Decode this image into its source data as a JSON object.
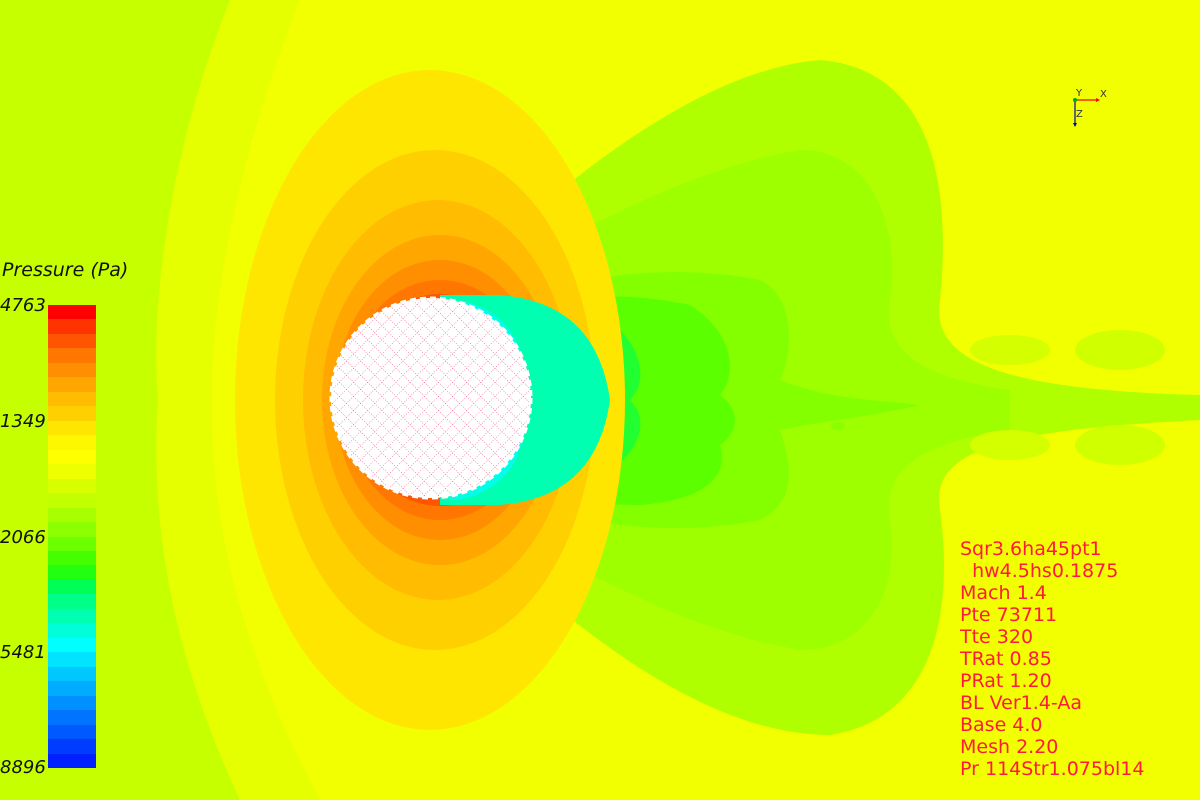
{
  "legend": {
    "title": "Pressure (Pa)",
    "ticks": [
      "4763",
      "1349",
      "2066",
      "5481",
      "8896"
    ],
    "colors": [
      "#ff0000",
      "#ff3300",
      "#ff5500",
      "#ff7700",
      "#ff8f00",
      "#ffa600",
      "#ffbc00",
      "#ffd000",
      "#ffe600",
      "#fff700",
      "#ffff00",
      "#eeff00",
      "#d8ff00",
      "#c2ff00",
      "#a8ff00",
      "#8cff00",
      "#6cff00",
      "#44ff00",
      "#22ff10",
      "#00ff55",
      "#00ff88",
      "#00ffb0",
      "#00ffd8",
      "#00ffff",
      "#00e4ff",
      "#00c8ff",
      "#00acff",
      "#0090ff",
      "#0074ff",
      "#0058ff",
      "#003cff",
      "#0020ff"
    ]
  },
  "axes": {
    "x": "X",
    "y": "Y",
    "z": "Z"
  },
  "params": [
    "Sqr3.6ha45pt1",
    "  hw4.5hs0.1875",
    "Mach 1.4",
    "Pte 73711",
    "Tte 320",
    "TRat 0.85",
    "PRat 1.20",
    "BL Ver1.4-Aa",
    "Base 4.0",
    "Mesh 2.20",
    "Pr 114Str1.075bl14"
  ],
  "field": {
    "background": "#c6ff00",
    "body_color": "#ffffff",
    "mesh_color": "#e0004a"
  }
}
